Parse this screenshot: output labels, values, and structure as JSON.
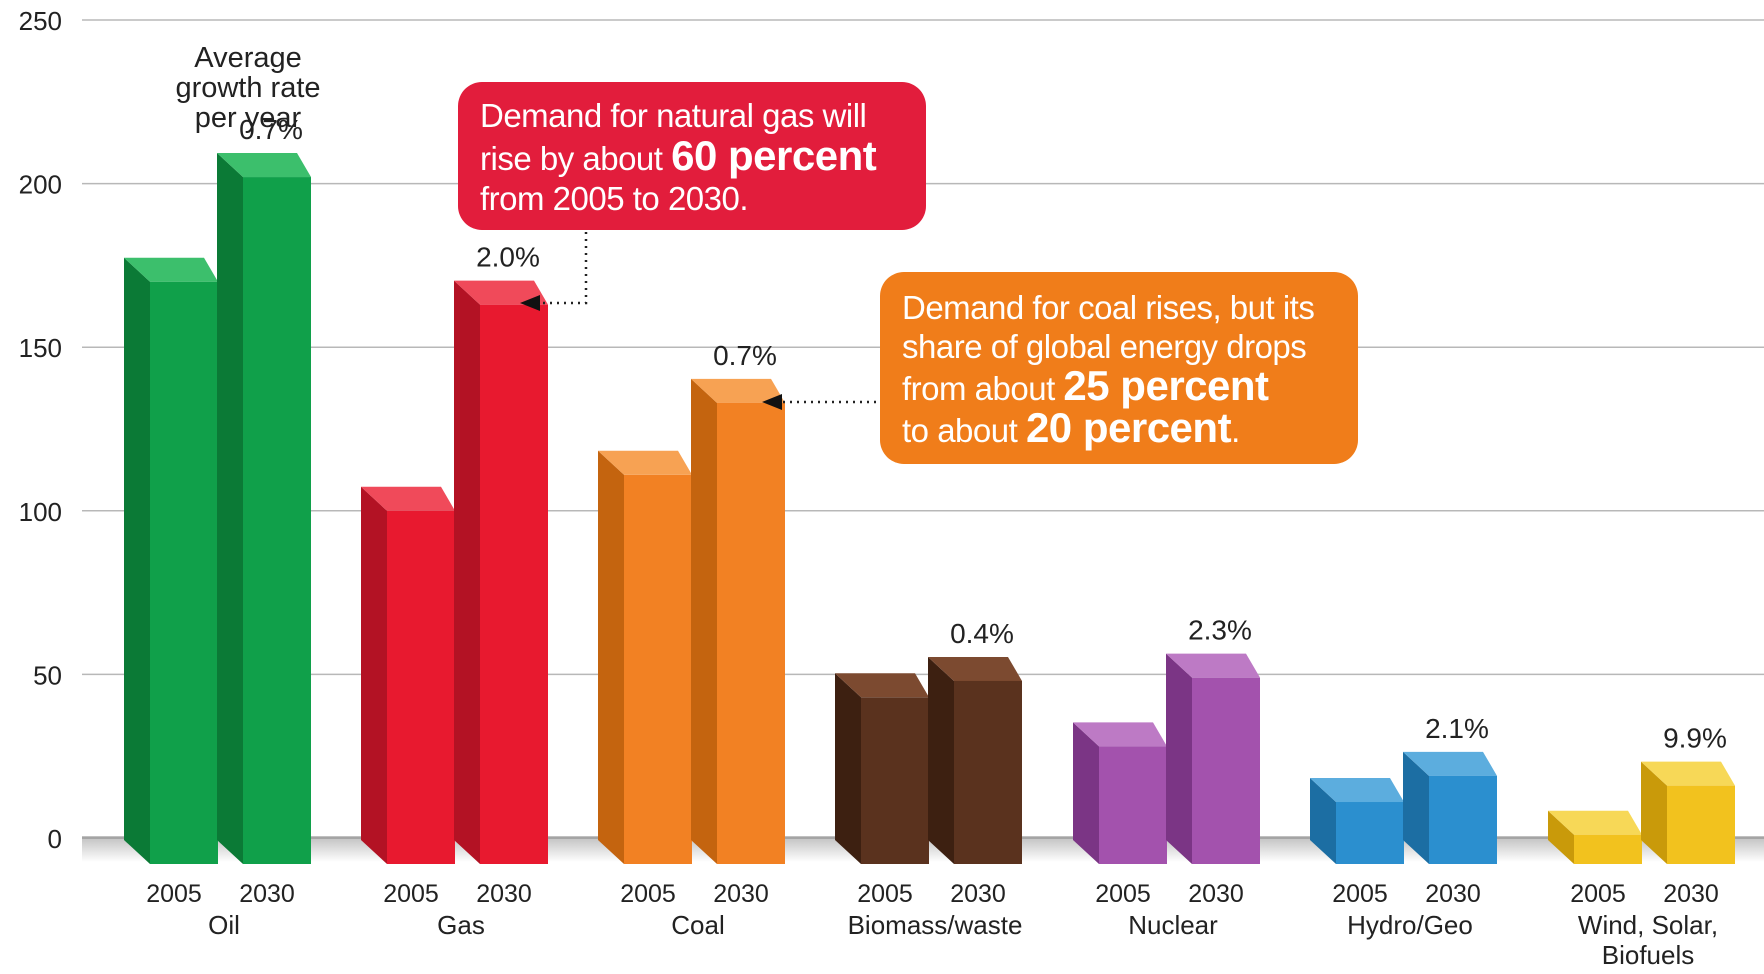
{
  "chart_data": {
    "type": "bar",
    "y_ticks": [
      "0",
      "50",
      "100",
      "150",
      "200",
      "250"
    ],
    "ylim": [
      0,
      250
    ],
    "grid": true,
    "groups": [
      {
        "name": "Oil",
        "name_lines": [
          "Oil"
        ],
        "color": "#10a04a",
        "side": "#0b7a36",
        "top": "#3cbf6c",
        "bars": [
          {
            "year": "2005",
            "value": 170
          },
          {
            "year": "2030",
            "value": 202
          }
        ],
        "growth": "0.7%"
      },
      {
        "name": "Gas",
        "name_lines": [
          "Gas"
        ],
        "color": "#e8192f",
        "side": "#b31224",
        "top": "#f04a5a",
        "bars": [
          {
            "year": "2005",
            "value": 100
          },
          {
            "year": "2030",
            "value": 163
          }
        ],
        "growth": "2.0%"
      },
      {
        "name": "Coal",
        "name_lines": [
          "Coal"
        ],
        "color": "#f28123",
        "side": "#c4640f",
        "top": "#f7a253",
        "bars": [
          {
            "year": "2005",
            "value": 111
          },
          {
            "year": "2030",
            "value": 133
          }
        ],
        "growth": "0.7%"
      },
      {
        "name": "Biomass/waste",
        "name_lines": [
          "Biomass/waste"
        ],
        "color": "#5a321e",
        "side": "#3d2011",
        "top": "#7c4a30",
        "bars": [
          {
            "year": "2005",
            "value": 43
          },
          {
            "year": "2030",
            "value": 48
          }
        ],
        "growth": "0.4%"
      },
      {
        "name": "Nuclear",
        "name_lines": [
          "Nuclear"
        ],
        "color": "#a352ad",
        "side": "#7b3585",
        "top": "#bd7ac5",
        "bars": [
          {
            "year": "2005",
            "value": 28
          },
          {
            "year": "2030",
            "value": 49
          }
        ],
        "growth": "2.3%"
      },
      {
        "name": "Hydro/Geo",
        "name_lines": [
          "Hydro/Geo"
        ],
        "color": "#2b8fcf",
        "side": "#1c6ea3",
        "top": "#5cadde",
        "bars": [
          {
            "year": "2005",
            "value": 11
          },
          {
            "year": "2030",
            "value": 19
          }
        ],
        "growth": "2.1%"
      },
      {
        "name": "Wind, Solar, Biofuels",
        "name_lines": [
          "Wind, Solar,",
          "Biofuels"
        ],
        "color": "#f2c21e",
        "side": "#c99a0a",
        "top": "#f7d857",
        "bars": [
          {
            "year": "2005",
            "value": 1
          },
          {
            "year": "2030",
            "value": 16
          }
        ],
        "growth": "9.9%"
      }
    ],
    "growth_heading": [
      "Average",
      "growth rate",
      "per year"
    ],
    "annotations": [
      {
        "id": "gas",
        "lines": [
          [
            {
              "text": "Demand for natural gas will",
              "bold": false
            }
          ],
          [
            {
              "text": "rise by about ",
              "bold": false
            },
            {
              "text": "60 percent",
              "bold": true
            }
          ],
          [
            {
              "text": "from 2005 to 2030.",
              "bold": false
            }
          ]
        ],
        "color": "#e21d3c"
      },
      {
        "id": "coal",
        "lines": [
          [
            {
              "text": "Demand for coal rises, but its",
              "bold": false
            }
          ],
          [
            {
              "text": "share of global energy drops",
              "bold": false
            }
          ],
          [
            {
              "text": "from about ",
              "bold": false
            },
            {
              "text": "25 percent",
              "bold": true
            }
          ],
          [
            {
              "text": "to about ",
              "bold": false
            },
            {
              "text": "20 percent",
              "bold": true
            },
            {
              "text": ".",
              "bold": false
            }
          ]
        ],
        "color": "#f07d1a"
      }
    ]
  }
}
